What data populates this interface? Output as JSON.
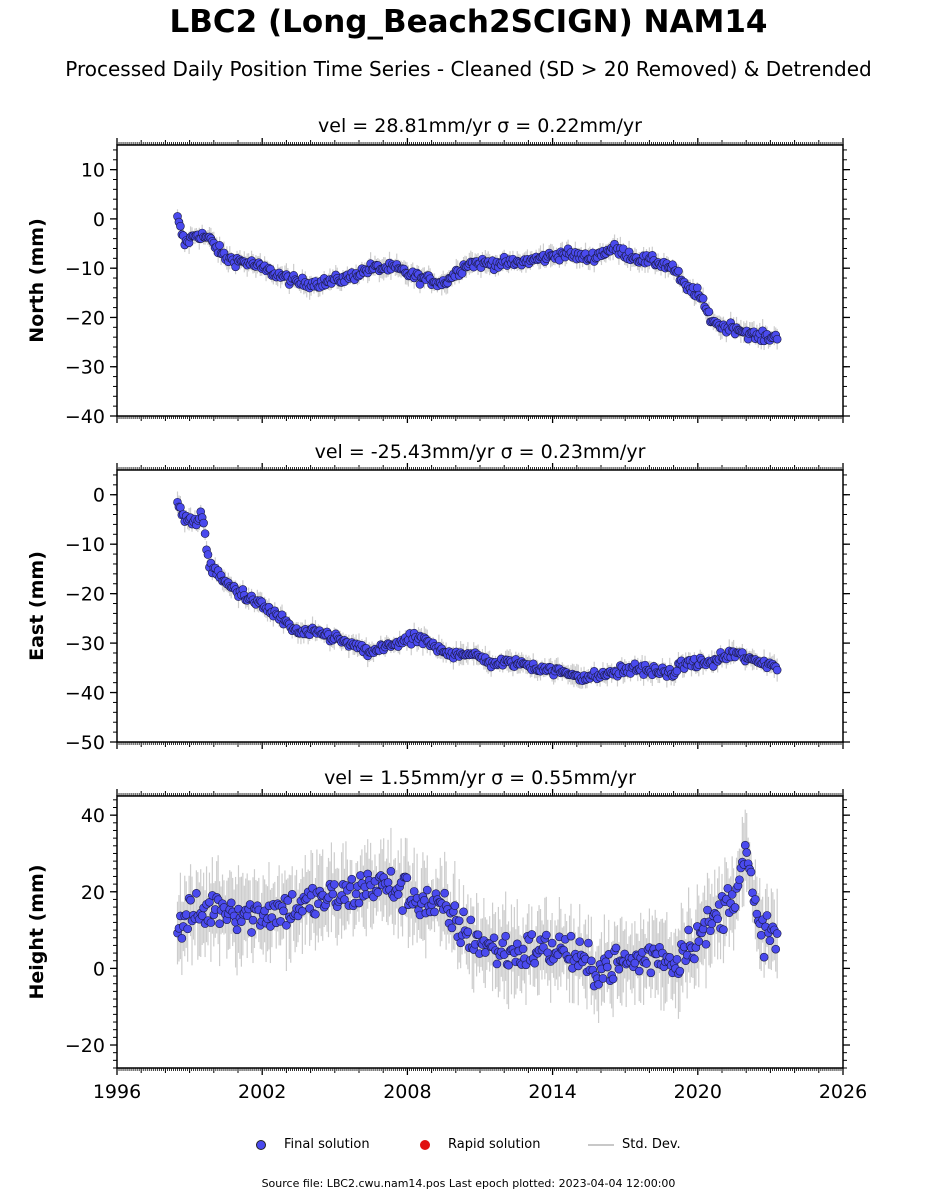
{
  "title": "LBC2 (Long_Beach2SCIGN) NAM14",
  "subtitle": "Processed Daily Position Time Series - Cleaned (SD > 20 Removed) & Detrended",
  "colors": {
    "final": "#4a4aee",
    "rapid": "#e01010",
    "stddev": "#c8c8c8"
  },
  "legend": {
    "final": "Final solution",
    "rapid": "Rapid solution",
    "stddev": "Std. Dev."
  },
  "footer": "Source file: LBC2.cwu.nam14.pos  Last epoch plotted: 2023-04-04 12:00:00",
  "chart_data": [
    {
      "type": "scatter",
      "title": "vel = 28.81mm/yr   σ = 0.22mm/yr",
      "ylabel": "North (mm)",
      "xlim": [
        1996,
        2026
      ],
      "ylim": [
        -40,
        15
      ],
      "yticks": [
        "10",
        "0",
        "−10",
        "−20",
        "−30",
        "−40"
      ],
      "series": [
        {
          "name": "Final solution",
          "x": [
            1998.5,
            1998.8,
            1999.3,
            1999.8,
            2000.5,
            2001.5,
            2002.5,
            2003.5,
            2004.5,
            2005.5,
            2006.5,
            2007.5,
            2008.5,
            2009.5,
            2010.5,
            2011.5,
            2012.5,
            2013.5,
            2014.5,
            2015.5,
            2016.5,
            2017.5,
            2018.5,
            2019.0,
            2019.5,
            2020.0,
            2020.5,
            2021.0,
            2021.5,
            2022.5,
            2023.0,
            2023.3
          ],
          "y": [
            0,
            -5,
            -3,
            -4,
            -8,
            -9,
            -11,
            -13,
            -13,
            -12,
            -10,
            -10,
            -12,
            -13,
            -9,
            -9,
            -9,
            -8,
            -7,
            -8,
            -6,
            -8,
            -9,
            -10,
            -14,
            -15,
            -20,
            -22,
            -22,
            -24,
            -24,
            -24
          ]
        }
      ]
    },
    {
      "type": "scatter",
      "title": "vel = -25.43mm/yr   σ = 0.23mm/yr",
      "ylabel": "East (mm)",
      "xlim": [
        1996,
        2026
      ],
      "ylim": [
        -50,
        5
      ],
      "yticks": [
        "0",
        "−10",
        "−20",
        "−30",
        "−40",
        "−50"
      ],
      "series": [
        {
          "name": "Final solution",
          "x": [
            1998.5,
            1998.8,
            1999.3,
            1999.5,
            1999.8,
            2000.5,
            2001.5,
            2002.5,
            2003.5,
            2004.5,
            2005.5,
            2006.5,
            2007.5,
            2008.5,
            2009.5,
            2010.5,
            2011.5,
            2012.5,
            2013.5,
            2014.5,
            2015.5,
            2016.5,
            2017.5,
            2018.5,
            2019.0,
            2019.5,
            2020.0,
            2020.5,
            2021.0,
            2021.5,
            2022.5,
            2023.0,
            2023.3
          ],
          "y": [
            -1,
            -5,
            -6,
            -3,
            -14,
            -18,
            -21,
            -24,
            -28,
            -28,
            -30,
            -32,
            -30,
            -29,
            -32,
            -32,
            -34,
            -34,
            -35,
            -36,
            -37,
            -36,
            -35,
            -36,
            -36,
            -34,
            -34,
            -34,
            -33,
            -32,
            -34,
            -34,
            -35
          ]
        }
      ]
    },
    {
      "type": "scatter",
      "title": "vel = 1.55mm/yr   σ = 0.55mm/yr",
      "ylabel": "Height (mm)",
      "xlim": [
        1996,
        2026
      ],
      "ylim": [
        -26,
        45
      ],
      "yticks": [
        "40",
        "20",
        "0",
        "−20"
      ],
      "series": [
        {
          "name": "Final solution",
          "x": [
            1998.5,
            1999.0,
            1999.5,
            2000.0,
            2000.5,
            2001.5,
            2002.5,
            2003.5,
            2004.5,
            2005.5,
            2006.5,
            2007.5,
            2008.5,
            2009.5,
            2010.5,
            2011.5,
            2012.5,
            2013.5,
            2014.5,
            2015.5,
            2016.5,
            2017.5,
            2018.5,
            2019.0,
            2019.5,
            2020.0,
            2020.5,
            2021.0,
            2021.5,
            2022.0,
            2022.5,
            2023.0,
            2023.3
          ],
          "y": [
            10,
            14,
            14,
            16,
            16,
            14,
            15,
            16,
            18,
            19,
            22,
            21,
            18,
            15,
            9,
            5,
            4,
            5,
            5,
            0,
            1,
            2,
            4,
            1,
            6,
            8,
            11,
            15,
            20,
            30,
            10,
            9,
            8
          ]
        }
      ]
    }
  ]
}
